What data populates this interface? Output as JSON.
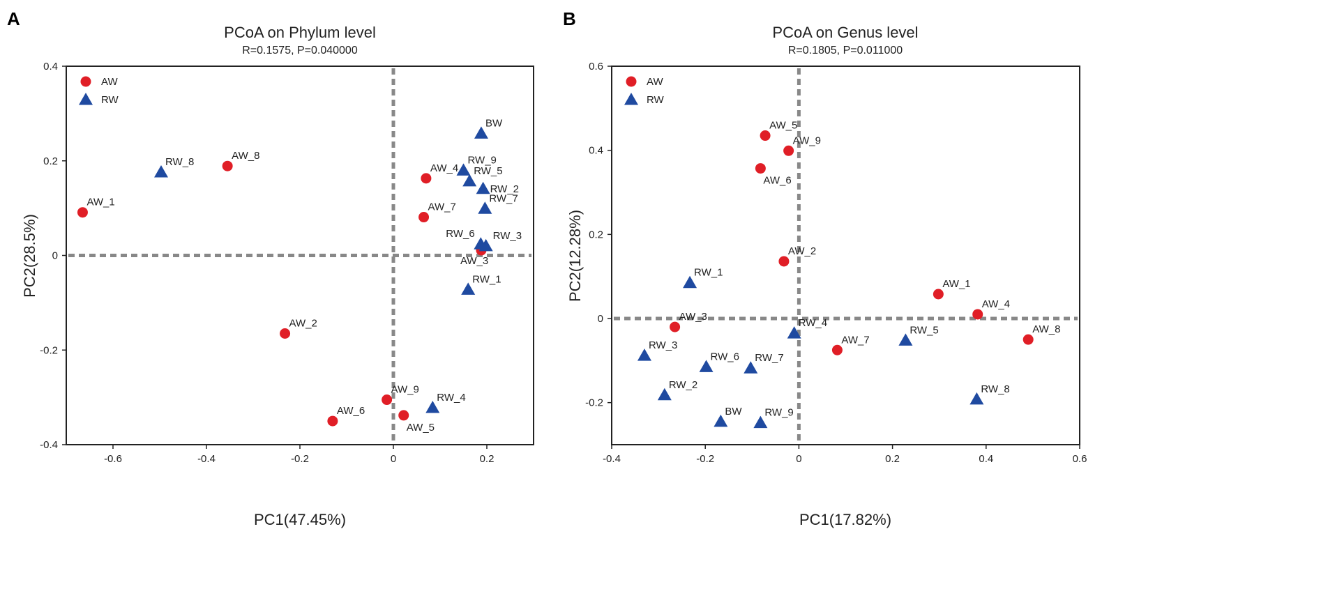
{
  "colors": {
    "AW": "#e01e26",
    "RW": "#1f4aa0"
  },
  "chart_data": [
    {
      "type": "scatter",
      "panel": "A",
      "title": "PCoA on Phylum level",
      "subtitle": "R=0.1575, P=0.040000",
      "xlabel": "PC1(47.45%)",
      "ylabel": "PC2(28.5%)",
      "xlim": [
        -0.7,
        0.3
      ],
      "ylim": [
        -0.4,
        0.4
      ],
      "xticks": [
        -0.6,
        -0.4,
        -0.2,
        0,
        0.2
      ],
      "xtick_labels": [
        "-0.6",
        "-0.4",
        "-0.2",
        "0",
        "0.2"
      ],
      "yticks": [
        -0.4,
        -0.2,
        0,
        0.2,
        0.4
      ],
      "ytick_labels": [
        "-0.4",
        "-0.2",
        "0",
        "0.2",
        "0.4"
      ],
      "legend": {
        "position": "top-left",
        "entries": [
          {
            "name": "AW",
            "marker": "circle"
          },
          {
            "name": "RW",
            "marker": "triangle"
          }
        ]
      },
      "series": [
        {
          "name": "AW",
          "marker": "circle",
          "points": [
            {
              "label": "AW_1",
              "x": -0.665,
              "y": 0.091,
              "anchor": "above"
            },
            {
              "label": "AW_8",
              "x": -0.355,
              "y": 0.189,
              "anchor": "above"
            },
            {
              "label": "AW_4",
              "x": 0.07,
              "y": 0.163,
              "anchor": "above"
            },
            {
              "label": "AW_7",
              "x": 0.065,
              "y": 0.081,
              "anchor": "above"
            },
            {
              "label": "AW_3",
              "x": 0.188,
              "y": 0.011,
              "anchor": "below-left"
            },
            {
              "label": "AW_2",
              "x": -0.232,
              "y": -0.165,
              "anchor": "above"
            },
            {
              "label": "AW_9",
              "x": -0.014,
              "y": -0.305,
              "anchor": "above"
            },
            {
              "label": "AW_6",
              "x": -0.13,
              "y": -0.35,
              "anchor": "above"
            },
            {
              "label": "AW_5",
              "x": 0.022,
              "y": -0.338,
              "anchor": "below"
            }
          ]
        },
        {
          "name": "RW",
          "marker": "triangle",
          "points": [
            {
              "label": "RW_8",
              "x": -0.497,
              "y": 0.176,
              "anchor": "above"
            },
            {
              "label": "BW",
              "x": 0.188,
              "y": 0.258,
              "anchor": "above"
            },
            {
              "label": "RW_9",
              "x": 0.15,
              "y": 0.18,
              "anchor": "above"
            },
            {
              "label": "RW_5",
              "x": 0.163,
              "y": 0.157,
              "anchor": "above"
            },
            {
              "label": "RW_2",
              "x": 0.192,
              "y": 0.141,
              "anchor": "right"
            },
            {
              "label": "RW_7",
              "x": 0.196,
              "y": 0.099,
              "anchor": "above"
            },
            {
              "label": "RW_6",
              "x": 0.187,
              "y": 0.024,
              "anchor": "above-left"
            },
            {
              "label": "RW_3",
              "x": 0.198,
              "y": 0.02,
              "anchor": "above-right"
            },
            {
              "label": "RW_1",
              "x": 0.16,
              "y": -0.072,
              "anchor": "above"
            },
            {
              "label": "RW_4",
              "x": 0.084,
              "y": -0.322,
              "anchor": "above"
            }
          ]
        }
      ]
    },
    {
      "type": "scatter",
      "panel": "B",
      "title": "PCoA on Genus level",
      "subtitle": "R=0.1805, P=0.011000",
      "xlabel": "PC1(17.82%)",
      "ylabel": "PC2(12.28%)",
      "xlim": [
        -0.4,
        0.6
      ],
      "ylim": [
        -0.3,
        0.6
      ],
      "xticks": [
        -0.4,
        -0.2,
        0,
        0.2,
        0.4,
        0.6
      ],
      "xtick_labels": [
        "-0.4",
        "-0.2",
        "0",
        "0.2",
        "0.4",
        "0.6"
      ],
      "yticks": [
        -0.2,
        0,
        0.2,
        0.4,
        0.6
      ],
      "ytick_labels": [
        "-0.2",
        "0",
        "0.2",
        "0.4",
        "0.6"
      ],
      "legend": {
        "position": "top-left",
        "entries": [
          {
            "name": "AW",
            "marker": "circle"
          },
          {
            "name": "RW",
            "marker": "triangle"
          }
        ]
      },
      "series": [
        {
          "name": "AW",
          "marker": "circle",
          "points": [
            {
              "label": "AW_5",
              "x": -0.072,
              "y": 0.435,
              "anchor": "above"
            },
            {
              "label": "AW_9",
              "x": -0.022,
              "y": 0.399,
              "anchor": "above"
            },
            {
              "label": "AW_6",
              "x": -0.082,
              "y": 0.357,
              "anchor": "below"
            },
            {
              "label": "AW_2",
              "x": -0.032,
              "y": 0.136,
              "anchor": "above"
            },
            {
              "label": "AW_1",
              "x": 0.298,
              "y": 0.058,
              "anchor": "above"
            },
            {
              "label": "AW_4",
              "x": 0.382,
              "y": 0.01,
              "anchor": "above"
            },
            {
              "label": "AW_3",
              "x": -0.265,
              "y": -0.02,
              "anchor": "above"
            },
            {
              "label": "AW_7",
              "x": 0.082,
              "y": -0.075,
              "anchor": "above"
            },
            {
              "label": "AW_8",
              "x": 0.49,
              "y": -0.05,
              "anchor": "above"
            }
          ]
        },
        {
          "name": "RW",
          "marker": "triangle",
          "points": [
            {
              "label": "RW_1",
              "x": -0.233,
              "y": 0.085,
              "anchor": "above"
            },
            {
              "label": "RW_4",
              "x": -0.01,
              "y": -0.035,
              "anchor": "above"
            },
            {
              "label": "RW_5",
              "x": 0.228,
              "y": -0.052,
              "anchor": "above"
            },
            {
              "label": "RW_3",
              "x": -0.33,
              "y": -0.088,
              "anchor": "above"
            },
            {
              "label": "RW_6",
              "x": -0.198,
              "y": -0.115,
              "anchor": "above"
            },
            {
              "label": "RW_7",
              "x": -0.103,
              "y": -0.118,
              "anchor": "above"
            },
            {
              "label": "RW_2",
              "x": -0.287,
              "y": -0.182,
              "anchor": "above"
            },
            {
              "label": "RW_8",
              "x": 0.38,
              "y": -0.192,
              "anchor": "above"
            },
            {
              "label": "BW",
              "x": -0.167,
              "y": -0.245,
              "anchor": "above"
            },
            {
              "label": "RW_9",
              "x": -0.082,
              "y": -0.248,
              "anchor": "above"
            }
          ]
        }
      ]
    }
  ]
}
